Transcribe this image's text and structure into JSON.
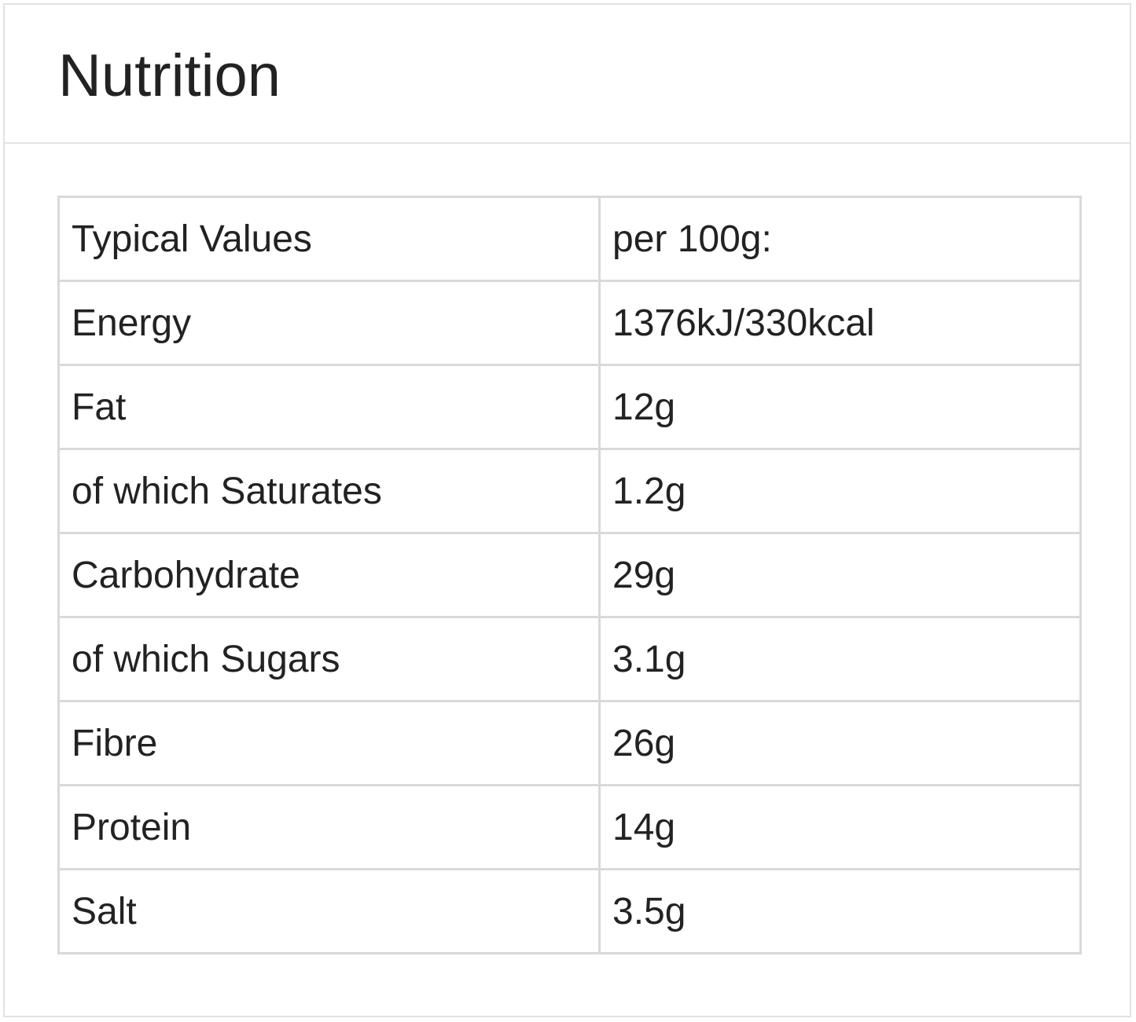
{
  "title": "Nutrition",
  "table": {
    "header": {
      "label": "Typical Values",
      "value": "per 100g:"
    },
    "rows": [
      {
        "label": "Energy",
        "value": "1376kJ/330kcal"
      },
      {
        "label": "Fat",
        "value": "12g"
      },
      {
        "label": "of which Saturates",
        "value": "1.2g"
      },
      {
        "label": "Carbohydrate",
        "value": "29g"
      },
      {
        "label": "of which Sugars",
        "value": "3.1g"
      },
      {
        "label": "Fibre",
        "value": "26g"
      },
      {
        "label": "Protein",
        "value": "14g"
      },
      {
        "label": "Salt",
        "value": "3.5g"
      }
    ]
  },
  "colors": {
    "border": "#d9d9d9",
    "panel_border": "#e3e3e3",
    "text": "#222222",
    "background": "#ffffff"
  }
}
